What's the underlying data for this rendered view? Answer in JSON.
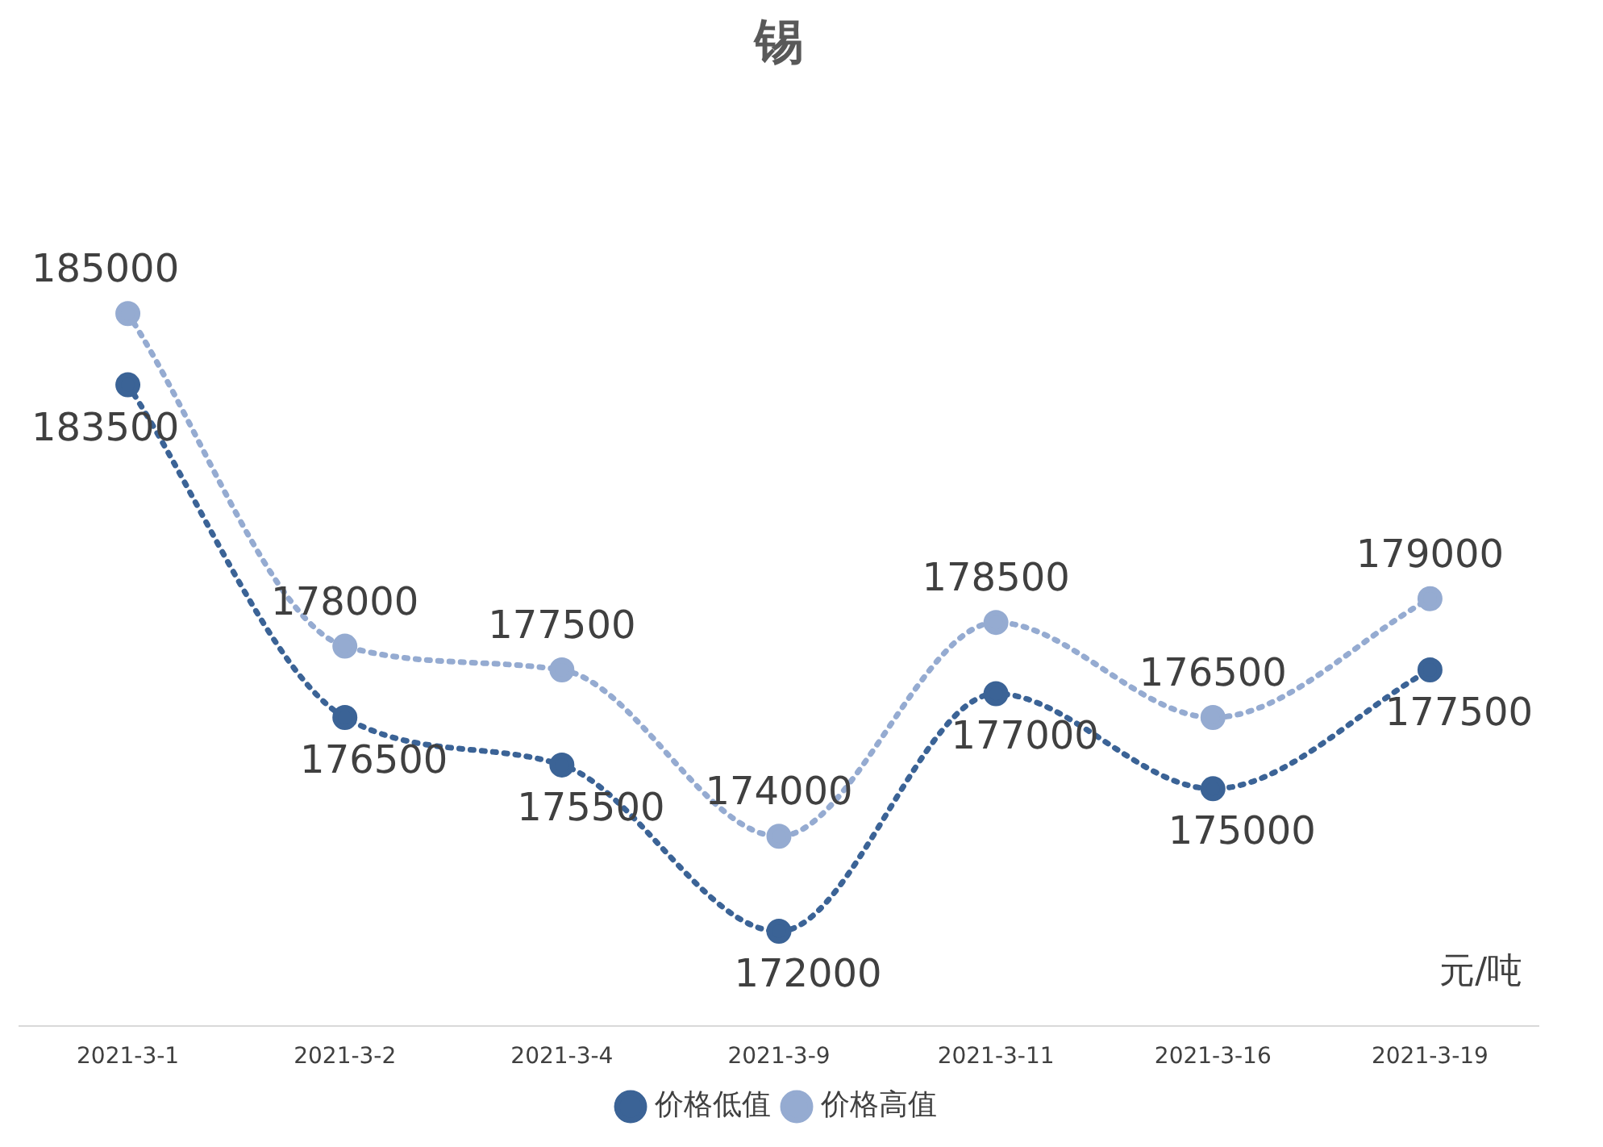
{
  "chart_data": {
    "type": "line",
    "title": "锡",
    "categories": [
      "2021-3-1",
      "2021-3-2",
      "2021-3-4",
      "2021-3-9",
      "2021-3-11",
      "2021-3-16",
      "2021-3-19"
    ],
    "series": [
      {
        "name": "价格低值",
        "color": "#3b6396",
        "values": [
          183500,
          176500,
          175500,
          172000,
          177000,
          175000,
          177500
        ]
      },
      {
        "name": "价格高值",
        "color": "#95abd1",
        "values": [
          185000,
          178000,
          177500,
          174000,
          178500,
          176500,
          179000
        ]
      }
    ],
    "tick_labels": "x",
    "grid": false,
    "legend": "bottom",
    "marker": "circle",
    "line_style": "dotted",
    "data_labels": true,
    "annotations": [
      "元/吨"
    ]
  }
}
